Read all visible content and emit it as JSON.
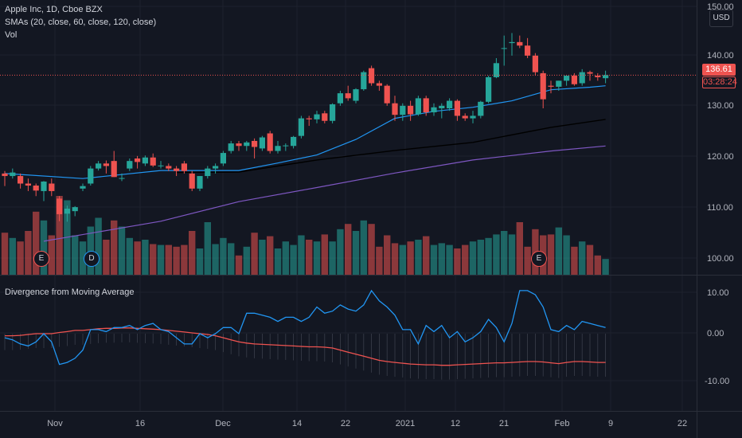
{
  "legend": {
    "symbol": "Apple Inc, 1D, Cboe BZX",
    "smas": "SMAs (20, close, 60, close, 120, close)",
    "vol": "Vol"
  },
  "divergence_title": "Divergence from Moving Average",
  "currency": "USD",
  "last_price": "136.61",
  "countdown": "03:28:24",
  "price_axis": [
    "150.00",
    "140.00",
    "130.00",
    "120.00",
    "110.00",
    "100.00"
  ],
  "osc_axis": [
    "10.00",
    "0.00",
    "-10.00"
  ],
  "date_axis": [
    "Nov",
    "16",
    "Dec",
    "14",
    "22",
    "2021",
    "12",
    "21",
    "Feb",
    "9",
    "22"
  ],
  "events": [
    "E",
    "D",
    "E"
  ],
  "colors": {
    "background": "#131722",
    "up": "#26a69a",
    "down": "#ef5350",
    "sma20": "#2196f3",
    "sma60": "#000000",
    "sma120": "#7e57c2",
    "divergence": "#2196f3",
    "signal": "#ef5350"
  },
  "chart_data": [
    {
      "type": "candlestick",
      "title": "Apple Inc, 1D, Cboe BZX",
      "ylim": [
        98,
        152
      ],
      "candles": [
        [
          117,
          117.5,
          114.5,
          116.5
        ],
        [
          116.5,
          118,
          116,
          117.2
        ],
        [
          116.5,
          117,
          114,
          115
        ],
        [
          115,
          116,
          113.5,
          114.6
        ],
        [
          114.6,
          115,
          112.5,
          113.6
        ],
        [
          113.5,
          115.5,
          111.5,
          115.4
        ],
        [
          115,
          116,
          112.5,
          113.5
        ],
        [
          112,
          112.5,
          107.5,
          108.9
        ],
        [
          109,
          110.6,
          107.4,
          110
        ],
        [
          109.5,
          110.5,
          108.5,
          110.3
        ],
        [
          114,
          115,
          113.5,
          114.5
        ],
        [
          115,
          118.5,
          114.6,
          118
        ],
        [
          118,
          119.5,
          117.6,
          119
        ],
        [
          119,
          119.6,
          117,
          118.5
        ],
        [
          119.5,
          121.5,
          116.3,
          116.3
        ],
        [
          116,
          117,
          115.5,
          116.1
        ],
        [
          118,
          120,
          117.5,
          119.5
        ],
        [
          120,
          120.5,
          118,
          119.3
        ],
        [
          119,
          120.6,
          118.5,
          120.2
        ],
        [
          120.2,
          121,
          118.3,
          118.6
        ],
        [
          118.6,
          119.5,
          118,
          118.6
        ],
        [
          118.5,
          119,
          117.5,
          118
        ],
        [
          118,
          118.5,
          116.5,
          117.5
        ],
        [
          119,
          119.5,
          117,
          117.5
        ],
        [
          117,
          117.5,
          113.5,
          114
        ],
        [
          114,
          116.5,
          113.5,
          116.5
        ],
        [
          116.5,
          118.5,
          116,
          118
        ],
        [
          118,
          119,
          117,
          118.5
        ],
        [
          119,
          121.5,
          118.5,
          121.1
        ],
        [
          121.5,
          123.5,
          121,
          123
        ],
        [
          123,
          123.5,
          121.5,
          122.5
        ],
        [
          122.5,
          123.5,
          121.5,
          123.2
        ],
        [
          123.5,
          124,
          120,
          122.3
        ],
        [
          122,
          124.5,
          121.5,
          124.2
        ],
        [
          125,
          125.5,
          121,
          121.5
        ],
        [
          121.5,
          123.5,
          121,
          122.5
        ],
        [
          122.5,
          123,
          121.5,
          122.6
        ],
        [
          122.5,
          124.5,
          122,
          124.3
        ],
        [
          124.5,
          128.5,
          124,
          128
        ],
        [
          128,
          128.5,
          126.5,
          127.8
        ],
        [
          127.8,
          129.5,
          127,
          128.8
        ],
        [
          129,
          129.5,
          127,
          127.5
        ],
        [
          127.5,
          131,
          127,
          130.8
        ],
        [
          131,
          133.5,
          130.5,
          133
        ],
        [
          133,
          134.5,
          131.5,
          132
        ],
        [
          131.5,
          134,
          131,
          133.8
        ],
        [
          133.8,
          137.5,
          133.5,
          137.2
        ],
        [
          138,
          138.5,
          134.5,
          135
        ],
        [
          135,
          135.5,
          133.5,
          134.5
        ],
        [
          134.5,
          134.8,
          130.5,
          131
        ],
        [
          131,
          132.5,
          127.5,
          128.7
        ],
        [
          128.7,
          131,
          127.5,
          130.5
        ],
        [
          130.5,
          131.5,
          127.5,
          128.8
        ],
        [
          128.8,
          132.5,
          128.5,
          132
        ],
        [
          132,
          132.5,
          128.5,
          129.2
        ],
        [
          129.2,
          131,
          128.5,
          130.2
        ],
        [
          130,
          131,
          128,
          130.5
        ],
        [
          130,
          132,
          129.5,
          131.5
        ],
        [
          131.5,
          131.8,
          127.5,
          128.5
        ],
        [
          128.5,
          129,
          127.5,
          128
        ],
        [
          128,
          129.5,
          127,
          128.5
        ],
        [
          128.5,
          131.5,
          128,
          131.3
        ],
        [
          131.3,
          136.5,
          131,
          136.2
        ],
        [
          136.2,
          140,
          136,
          139
        ],
        [
          142,
          144.5,
          138.5,
          142
        ],
        [
          143,
          145,
          140.5,
          143.2
        ],
        [
          143.2,
          144.5,
          142,
          142.5
        ],
        [
          142.5,
          144,
          140,
          140.5
        ],
        [
          140.5,
          141,
          136.5,
          137.2
        ],
        [
          137,
          137.5,
          130,
          131.8
        ],
        [
          134.5,
          135.5,
          133,
          134.3
        ],
        [
          134.3,
          135.5,
          133.5,
          135.5
        ],
        [
          135.5,
          136.5,
          134.5,
          136.5
        ],
        [
          136.5,
          137,
          134.5,
          134.8
        ],
        [
          135,
          137.8,
          134.5,
          137.2
        ],
        [
          137.2,
          137.5,
          135.5,
          136.9
        ],
        [
          136.5,
          137,
          135.5,
          136.2
        ],
        [
          136,
          137.5,
          135,
          136.61
        ]
      ],
      "sma20": [
        [
          0,
          117
        ],
        [
          10,
          116
        ],
        [
          20,
          117.6
        ],
        [
          30,
          117.6
        ],
        [
          35,
          119.1
        ],
        [
          40,
          120.7
        ],
        [
          45,
          123.8
        ],
        [
          50,
          128
        ],
        [
          55,
          129.4
        ],
        [
          60,
          130.2
        ],
        [
          65,
          131.5
        ],
        [
          70,
          133.7
        ],
        [
          75,
          134.2
        ],
        [
          77,
          134.5
        ]
      ],
      "sma60": [
        [
          22,
          117.2
        ],
        [
          30,
          117.3
        ],
        [
          40,
          119.7
        ],
        [
          50,
          121.6
        ],
        [
          60,
          123.2
        ],
        [
          70,
          126.2
        ],
        [
          77,
          127.8
        ]
      ],
      "sma120": [
        [
          5,
          103.5
        ],
        [
          20,
          107.5
        ],
        [
          30,
          111.4
        ],
        [
          40,
          114.2
        ],
        [
          50,
          117.1
        ],
        [
          60,
          119.7
        ],
        [
          70,
          121.5
        ],
        [
          77,
          122.5
        ]
      ],
      "volume": [
        0.48,
        0.42,
        0.38,
        0.5,
        0.72,
        0.62,
        0.45,
        0.9,
        0.85,
        0.45,
        0.38,
        0.55,
        0.65,
        0.4,
        0.62,
        0.55,
        0.42,
        0.38,
        0.4,
        0.35,
        0.34,
        0.34,
        0.32,
        0.34,
        0.5,
        0.3,
        0.6,
        0.35,
        0.42,
        0.36,
        0.22,
        0.32,
        0.48,
        0.4,
        0.44,
        0.3,
        0.38,
        0.34,
        0.45,
        0.4,
        0.38,
        0.46,
        0.38,
        0.52,
        0.58,
        0.5,
        0.62,
        0.58,
        0.32,
        0.45,
        0.36,
        0.34,
        0.38,
        0.4,
        0.44,
        0.34,
        0.36,
        0.34,
        0.3,
        0.34,
        0.38,
        0.4,
        0.42,
        0.46,
        0.5,
        0.46,
        0.6,
        0.32,
        0.52,
        0.45,
        0.46,
        0.54,
        0.45,
        0.32,
        0.38,
        0.34,
        0.22,
        0.18
      ]
    },
    {
      "type": "line",
      "title": "Divergence from Moving Average",
      "ylim": [
        -15,
        13
      ],
      "series": [
        {
          "values": [
            -1,
            -1.5,
            -2.5,
            -3,
            -2,
            0,
            -2,
            -7.5,
            -7,
            -6,
            -4,
            1,
            1,
            0.5,
            1.5,
            1.5,
            2,
            1,
            2,
            2.5,
            1,
            0.5,
            -1,
            -2.5,
            -2.5,
            0,
            -1,
            0,
            1.5,
            1.5,
            0,
            5,
            5,
            4.5,
            4,
            3,
            4,
            4,
            3,
            4,
            6.5,
            5,
            5.5,
            7,
            6,
            5.5,
            7,
            10.5,
            8,
            6.5,
            4.5,
            1,
            1,
            -2.5,
            2,
            0.5,
            2,
            -1,
            0.5,
            -2,
            -1,
            0.5,
            3.5,
            1.5,
            -2,
            2.5,
            10.5,
            10.5,
            9.5,
            6.5,
            1,
            0.5,
            2,
            1,
            3,
            2.5,
            2,
            1.5
          ]
        },
        {
          "values": [
            -0.5,
            -0.5,
            -0.4,
            -0.2,
            0,
            0,
            0,
            0.3,
            0.5,
            0.8,
            0.8,
            1,
            1.2,
            1.3,
            1.3,
            1.4,
            1.4,
            1.3,
            1.2,
            1.1,
            1,
            0.8,
            0.6,
            0.4,
            0.2,
            0,
            -0.2,
            -0.5,
            -1,
            -1.5,
            -2,
            -2.3,
            -2.5,
            -2.6,
            -2.7,
            -2.8,
            -2.9,
            -3,
            -3.1,
            -3.2,
            -3.2,
            -3.3,
            -3.5,
            -4,
            -4.5,
            -5,
            -5.5,
            -6,
            -6.5,
            -6.8,
            -7,
            -7.2,
            -7.4,
            -7.5,
            -7.6,
            -7.6,
            -7.7,
            -7.7,
            -7.6,
            -7.5,
            -7.4,
            -7.3,
            -7.2,
            -7.1,
            -7.1,
            -7,
            -6.9,
            -6.8,
            -6.8,
            -6.9,
            -7.1,
            -7.3,
            -7,
            -6.8,
            -6.8,
            -6.9,
            -7,
            -7
          ]
        }
      ]
    }
  ]
}
